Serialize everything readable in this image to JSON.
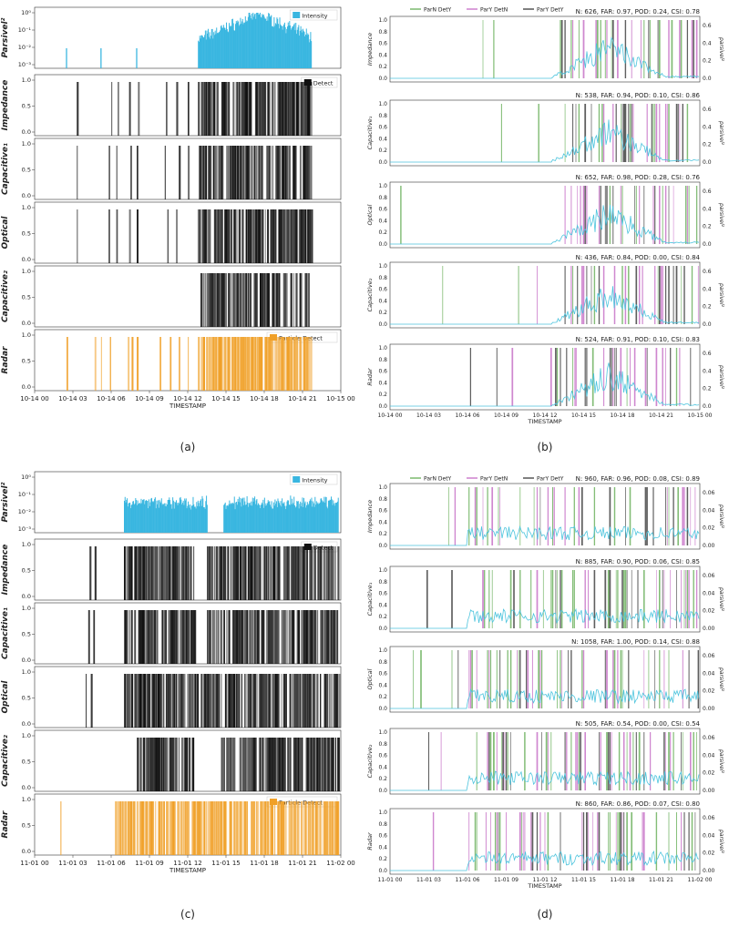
{
  "figure": {
    "panel_captions": [
      "(a)",
      "(b)",
      "(c)",
      "(d)"
    ]
  },
  "colors": {
    "intensity": "#39b6e0",
    "detect": "#111111",
    "particle_detect": "#f0a028",
    "parn_dety": "#5aa84a",
    "pary_detn": "#c060c0",
    "pary_dety": "#2a2a2a",
    "parsivel_line": "#4cc4dd"
  },
  "chart_data": [
    {
      "panel": "a",
      "type": "bar",
      "xlabel": "TIMESTAMP",
      "xtick_labels": [
        "10-14 00",
        "10-14 03",
        "10-14 06",
        "10-14 09",
        "10-14 12",
        "10-14 15",
        "10-14 18",
        "10-14 21",
        "10-15 00"
      ],
      "subplots": [
        {
          "ylabel": "Parsivel²",
          "legend": "Intensity",
          "yscale": "log",
          "ytick_labels": [
            "10⁻³",
            "10⁻²",
            "10⁻¹",
            "10⁰"
          ],
          "ylim": [
            0.001,
            1
          ]
        },
        {
          "ylabel": "Impedance",
          "legend": "Detect",
          "ytick_labels": [
            "0.0",
            "0.5",
            "1.0"
          ],
          "ylim": [
            0,
            1
          ]
        },
        {
          "ylabel": "Capacitive₁",
          "ytick_labels": [
            "0.0",
            "0.5",
            "1.0"
          ],
          "ylim": [
            0,
            1
          ]
        },
        {
          "ylabel": "Optical",
          "ytick_labels": [
            "0.0",
            "0.5",
            "1.0"
          ],
          "ylim": [
            0,
            1
          ]
        },
        {
          "ylabel": "Capacitive₂",
          "ytick_labels": [
            "0.0",
            "0.5",
            "1.0"
          ],
          "ylim": [
            0,
            1
          ]
        },
        {
          "ylabel": "Radar",
          "legend": "Particle Detect",
          "ytick_labels": [
            "0.0",
            "0.5",
            "1.0"
          ],
          "ylim": [
            0,
            1
          ]
        }
      ],
      "events_hours": {
        "parsivel_active": [
          [
            12.8,
            21.7
          ]
        ],
        "parsivel_isolated": [
          2.5,
          5.2,
          8.0
        ],
        "impedance_active": [
          [
            12.8,
            21.7
          ]
        ],
        "impedance_isolated": [
          3.3,
          6.0,
          6.5,
          7.4,
          8.1,
          10.3,
          11.1,
          12.0
        ],
        "capacitive1_active": [
          [
            12.7,
            21.7
          ]
        ],
        "capacitive1_isolated": [
          3.3,
          5.8,
          6.4,
          7.5,
          8.0,
          10.2,
          11.3,
          12.0
        ],
        "optical_active": [
          [
            12.7,
            21.7
          ]
        ],
        "optical_isolated": [
          3.3,
          5.8,
          6.4,
          7.4,
          8.0,
          10.4,
          11.1
        ],
        "capacitive2_active": [
          [
            13.0,
            21.5
          ]
        ],
        "capacitive2_isolated": [],
        "radar_active": [
          [
            12.8,
            21.7
          ]
        ],
        "radar_isolated": [
          2.5,
          4.7,
          5.2,
          5.9,
          7.3,
          7.6,
          8.0,
          9.8,
          10.6,
          11.3,
          12.0
        ]
      },
      "intensity_peak_hour": 17.5
    },
    {
      "panel": "b",
      "type": "line",
      "xlabel": "TIMESTAMP",
      "legend": [
        "ParN DetY",
        "ParY DetN",
        "ParY DetY"
      ],
      "xtick_labels": [
        "10-14 00",
        "10-14 03",
        "10-14 06",
        "10-14 09",
        "10-14 12",
        "10-14 15",
        "10-14 18",
        "10-14 21",
        "10-15 00"
      ],
      "y2label": "parsivel²",
      "subplots": [
        {
          "ylabel": "Impedance",
          "stats": "N: 626, FAR: 0.97, POD: 0.24, CSI: 0.78",
          "ytick_labels": [
            "0.0",
            "0.2",
            "0.4",
            "0.6",
            "0.8",
            "1.0"
          ],
          "y2tick_labels": [
            "0.0",
            "0.2",
            "0.4",
            "0.6"
          ]
        },
        {
          "ylabel": "Capacitive₁",
          "stats": "N: 538, FAR: 0.94, POD: 0.10, CSI: 0.86",
          "ytick_labels": [
            "0.0",
            "0.2",
            "0.4",
            "0.6",
            "0.8",
            "1.0"
          ],
          "y2tick_labels": [
            "0.0",
            "0.2",
            "0.4",
            "0.6"
          ]
        },
        {
          "ylabel": "Optical",
          "stats": "N: 652, FAR: 0.98, POD: 0.28, CSI: 0.76",
          "ytick_labels": [
            "0.0",
            "0.2",
            "0.4",
            "0.6",
            "0.8",
            "1.0"
          ],
          "y2tick_labels": [
            "0.0",
            "0.2",
            "0.4",
            "0.6"
          ]
        },
        {
          "ylabel": "Capacitive₂",
          "stats": "N: 436, FAR: 0.84, POD: 0.00, CSI: 0.84",
          "ytick_labels": [
            "0.0",
            "0.2",
            "0.4",
            "0.6",
            "0.8",
            "1.0"
          ],
          "y2tick_labels": [
            "0.0",
            "0.2",
            "0.4",
            "0.6"
          ]
        },
        {
          "ylabel": "Radar",
          "stats": "N: 524, FAR: 0.91, POD: 0.10, CSI: 0.83",
          "ytick_labels": [
            "0.0",
            "0.2",
            "0.4",
            "0.6",
            "0.8",
            "1.0"
          ],
          "y2tick_labels": [
            "0.0",
            "0.2",
            "0.4",
            "0.6"
          ]
        }
      ]
    },
    {
      "panel": "c",
      "type": "bar",
      "xlabel": "TIMESTAMP",
      "xtick_labels": [
        "11-01 00",
        "11-01 03",
        "11-01 06",
        "11-01 09",
        "11-01 12",
        "11-01 15",
        "11-01 18",
        "11-01 21",
        "11-02 00"
      ],
      "subplots": [
        {
          "ylabel": "Parsivel²",
          "legend": "Intensity",
          "yscale": "log",
          "ytick_labels": [
            "10⁻³",
            "10⁻²",
            "10⁻¹",
            "10⁰"
          ],
          "ylim": [
            0.001,
            1
          ]
        },
        {
          "ylabel": "Impedance",
          "legend": "Detect",
          "ytick_labels": [
            "0.0",
            "0.5",
            "1.0"
          ],
          "ylim": [
            0,
            1
          ]
        },
        {
          "ylabel": "Capacitive₁",
          "ytick_labels": [
            "0.0",
            "0.5",
            "1.0"
          ],
          "ylim": [
            0,
            1
          ]
        },
        {
          "ylabel": "Optical",
          "ytick_labels": [
            "0.0",
            "0.5",
            "1.0"
          ],
          "ylim": [
            0,
            1
          ]
        },
        {
          "ylabel": "Capacitive₂",
          "ytick_labels": [
            "0.0",
            "0.5",
            "1.0"
          ],
          "ylim": [
            0,
            1
          ]
        },
        {
          "ylabel": "Radar",
          "legend": "Particle Detect",
          "ytick_labels": [
            "0.0",
            "0.5",
            "1.0"
          ],
          "ylim": [
            0,
            1
          ]
        }
      ],
      "events_hours": {
        "parsivel_active": [
          [
            7.0,
            13.5
          ],
          [
            14.8,
            23.8
          ]
        ],
        "impedance_active": [
          [
            7.0,
            12.5
          ],
          [
            13.5,
            23.8
          ]
        ],
        "impedance_isolated": [
          4.3,
          4.7
        ],
        "capacitive1_active": [
          [
            7.0,
            12.6
          ],
          [
            13.5,
            23.8
          ]
        ],
        "capacitive1_isolated": [
          4.2,
          4.6
        ],
        "optical_active": [
          [
            7.0,
            23.8
          ]
        ],
        "optical_isolated": [
          4.0,
          4.4
        ],
        "capacitive2_active": [
          [
            8.0,
            12.5
          ],
          [
            14.6,
            23.8
          ]
        ],
        "capacitive2_isolated": [],
        "radar_active": [
          [
            6.3,
            23.8
          ]
        ],
        "radar_isolated": [
          2.0
        ]
      }
    },
    {
      "panel": "d",
      "type": "line",
      "xlabel": "TIMESTAMP",
      "legend": [
        "ParN DetY",
        "ParY DetN",
        "ParY DetY"
      ],
      "xtick_labels": [
        "11-01 00",
        "11-01 03",
        "11-01 06",
        "11-01 09",
        "11-01 12",
        "11-01 15",
        "11-01 18",
        "11-01 21",
        "11-02 00"
      ],
      "y2label": "parsivel²",
      "subplots": [
        {
          "ylabel": "Impedance",
          "stats": "N: 960, FAR: 0.96, POD: 0.08, CSI: 0.89",
          "ytick_labels": [
            "0.0",
            "0.2",
            "0.4",
            "0.6",
            "0.8",
            "1.0"
          ],
          "y2tick_labels": [
            "0.00",
            "0.02",
            "0.04",
            "0.06"
          ]
        },
        {
          "ylabel": "Capacitive₁",
          "stats": "N: 885, FAR: 0.90, POD: 0.06, CSI: 0.85",
          "ytick_labels": [
            "0.0",
            "0.2",
            "0.4",
            "0.6",
            "0.8",
            "1.0"
          ],
          "y2tick_labels": [
            "0.00",
            "0.02",
            "0.04",
            "0.06"
          ]
        },
        {
          "ylabel": "Optical",
          "stats": "N: 1058, FAR: 1.00, POD: 0.14, CSI: 0.88",
          "ytick_labels": [
            "0.0",
            "0.2",
            "0.4",
            "0.6",
            "0.8",
            "1.0"
          ],
          "y2tick_labels": [
            "0.00",
            "0.02",
            "0.04",
            "0.06"
          ]
        },
        {
          "ylabel": "Capacitive₂",
          "stats": "N: 505, FAR: 0.54, POD: 0.00, CSI: 0.54",
          "ytick_labels": [
            "0.0",
            "0.2",
            "0.4",
            "0.6",
            "0.8",
            "1.0"
          ],
          "y2tick_labels": [
            "0.00",
            "0.02",
            "0.04",
            "0.06"
          ]
        },
        {
          "ylabel": "Radar",
          "stats": "N: 860, FAR: 0.86, POD: 0.07, CSI: 0.80",
          "ytick_labels": [
            "0.0",
            "0.2",
            "0.4",
            "0.6",
            "0.8",
            "1.0"
          ],
          "y2tick_labels": [
            "0.00",
            "0.02",
            "0.04",
            "0.06"
          ]
        }
      ]
    }
  ]
}
